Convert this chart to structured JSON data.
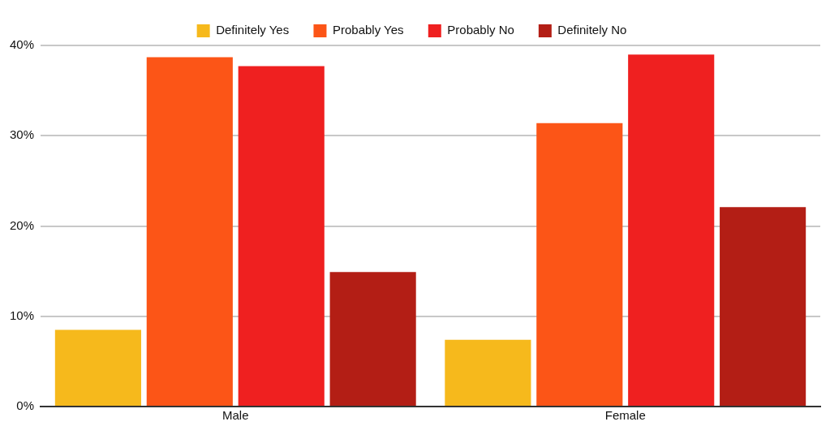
{
  "chart_data": {
    "type": "bar",
    "categories": [
      "Male",
      "Female"
    ],
    "series": [
      {
        "name": "Definitely Yes",
        "color": "#f6b91c",
        "values": [
          8.5,
          7.4
        ]
      },
      {
        "name": "Probably Yes",
        "color": "#fc5517",
        "values": [
          38.7,
          31.4
        ]
      },
      {
        "name": "Probably No",
        "color": "#ef2020",
        "values": [
          37.7,
          39.0
        ]
      },
      {
        "name": "Definitely No",
        "color": "#b31e15",
        "values": [
          14.9,
          22.1
        ]
      }
    ],
    "ylim": [
      0,
      40
    ],
    "yticks": [
      {
        "value": 0,
        "label": "0%"
      },
      {
        "value": 10,
        "label": "10%"
      },
      {
        "value": 20,
        "label": "20%"
      },
      {
        "value": 30,
        "label": "30%"
      },
      {
        "value": 40,
        "label": "40%"
      }
    ],
    "grid": "y",
    "legend": "top"
  }
}
